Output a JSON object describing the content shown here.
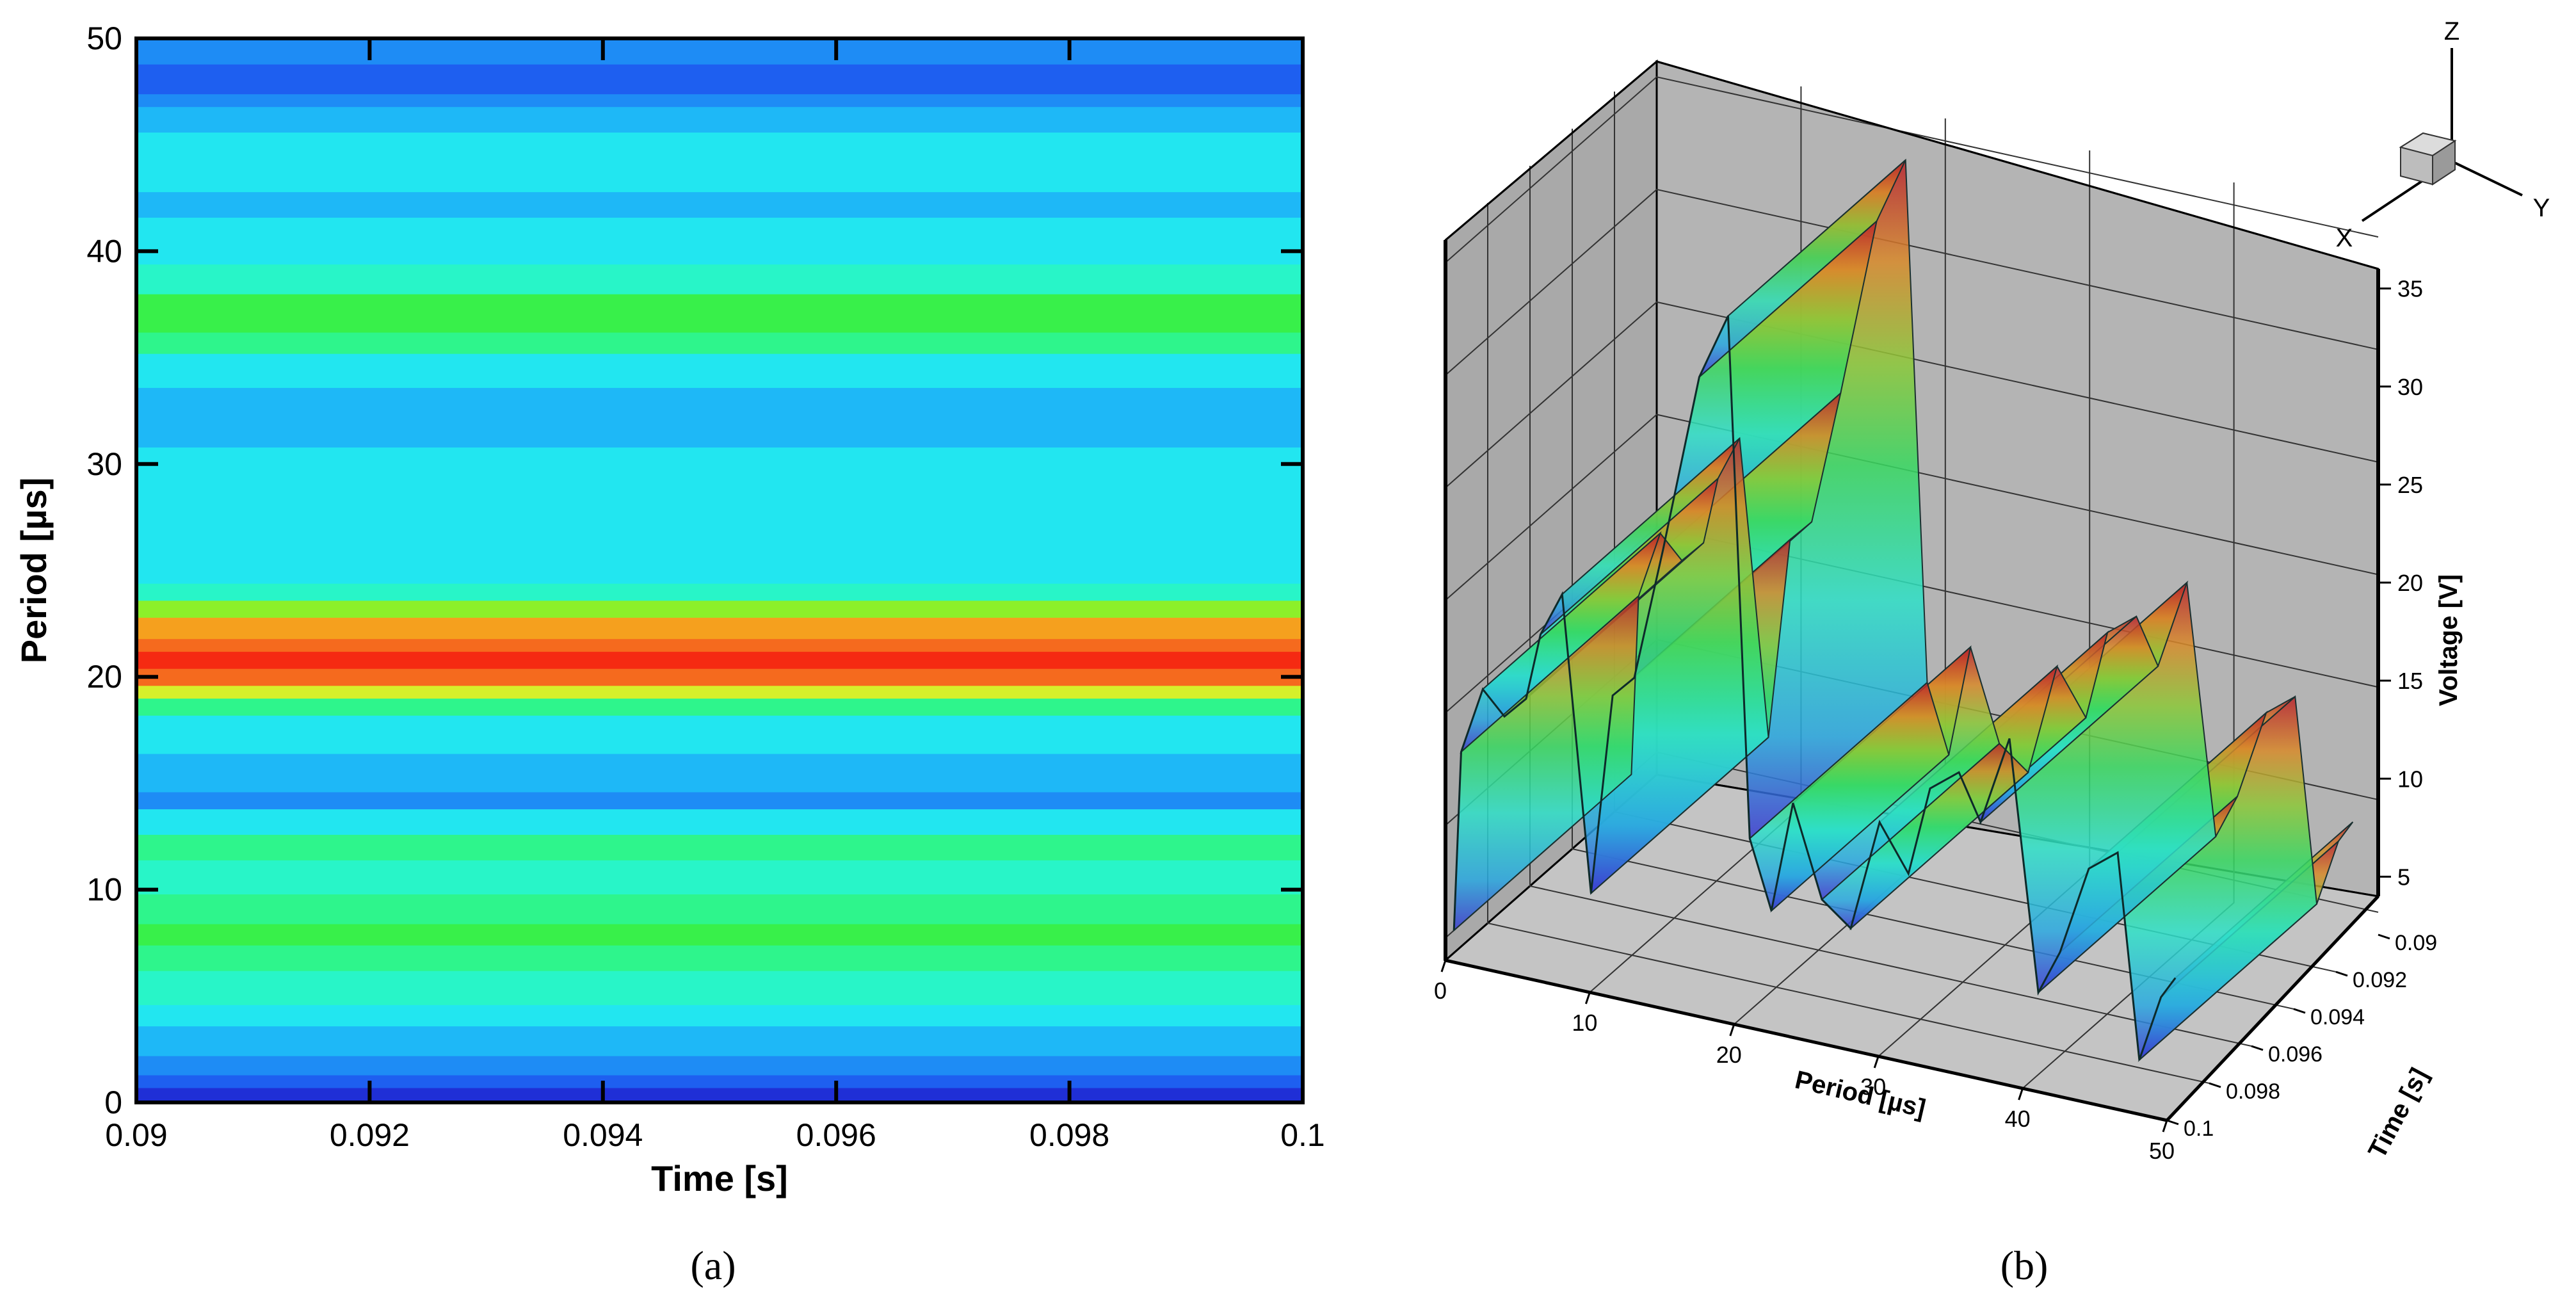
{
  "figure": {
    "panel_a_caption": "(a)",
    "panel_b_caption": "(b)"
  },
  "chart_data": [
    {
      "type": "heatmap",
      "title": "",
      "xlabel": "Time [s]",
      "ylabel": "Period [µs]",
      "xlim": [
        0.09,
        0.1
      ],
      "ylim": [
        0,
        50
      ],
      "x_ticks": [
        "0.09",
        "0.092",
        "0.094",
        "0.096",
        "0.098",
        "0.1"
      ],
      "y_ticks": [
        "0",
        "10",
        "20",
        "30",
        "40",
        "50"
      ],
      "colormap": [
        "#1f2fd6",
        "#1e5ff0",
        "#1e8cf5",
        "#1eb8f7",
        "#22e6f0",
        "#28f5c8",
        "#2ef58c",
        "#38f04a",
        "#8cf02a",
        "#d6f02a",
        "#f5e61e",
        "#f5a01e",
        "#f56a1e",
        "#f52a12"
      ],
      "bands": [
        {
          "from": 0,
          "to": 0.7,
          "level": 0
        },
        {
          "from": 0.7,
          "to": 1.3,
          "level": 1
        },
        {
          "from": 1.3,
          "to": 2.2,
          "level": 2
        },
        {
          "from": 2.2,
          "to": 3.6,
          "level": 3
        },
        {
          "from": 3.6,
          "to": 4.6,
          "level": 4
        },
        {
          "from": 4.6,
          "to": 6.2,
          "level": 5
        },
        {
          "from": 6.2,
          "to": 7.4,
          "level": 6
        },
        {
          "from": 7.4,
          "to": 8.4,
          "level": 7
        },
        {
          "from": 8.4,
          "to": 9.8,
          "level": 6
        },
        {
          "from": 9.8,
          "to": 11.4,
          "level": 5
        },
        {
          "from": 11.4,
          "to": 12.6,
          "level": 6
        },
        {
          "from": 12.6,
          "to": 13.8,
          "level": 4
        },
        {
          "from": 13.8,
          "to": 14.6,
          "level": 2
        },
        {
          "from": 14.6,
          "to": 16.4,
          "level": 3
        },
        {
          "from": 16.4,
          "to": 18.2,
          "level": 4
        },
        {
          "from": 18.2,
          "to": 19.0,
          "level": 6
        },
        {
          "from": 19.0,
          "to": 19.6,
          "level": 9
        },
        {
          "from": 19.6,
          "to": 20.4,
          "level": 12
        },
        {
          "from": 20.4,
          "to": 21.2,
          "level": 13
        },
        {
          "from": 21.2,
          "to": 21.8,
          "level": 12
        },
        {
          "from": 21.8,
          "to": 22.8,
          "level": 11
        },
        {
          "from": 22.8,
          "to": 23.6,
          "level": 8
        },
        {
          "from": 23.6,
          "to": 24.4,
          "level": 5
        },
        {
          "from": 24.4,
          "to": 30.8,
          "level": 4
        },
        {
          "from": 30.8,
          "to": 33.6,
          "level": 3
        },
        {
          "from": 33.6,
          "to": 35.2,
          "level": 4
        },
        {
          "from": 35.2,
          "to": 36.2,
          "level": 6
        },
        {
          "from": 36.2,
          "to": 38.0,
          "level": 7
        },
        {
          "from": 38.0,
          "to": 39.4,
          "level": 5
        },
        {
          "from": 39.4,
          "to": 41.6,
          "level": 4
        },
        {
          "from": 41.6,
          "to": 42.8,
          "level": 3
        },
        {
          "from": 42.8,
          "to": 45.6,
          "level": 4
        },
        {
          "from": 45.6,
          "to": 46.8,
          "level": 3
        },
        {
          "from": 46.8,
          "to": 47.4,
          "level": 2
        },
        {
          "from": 47.4,
          "to": 48.8,
          "level": 1
        },
        {
          "from": 48.8,
          "to": 50,
          "level": 2
        }
      ]
    },
    {
      "type": "surface3d",
      "title": "",
      "xlabel": "Period [µs]",
      "ylabel": "Time [s]",
      "zlabel": "Voltage [V]",
      "xlim": [
        0,
        50
      ],
      "ylim": [
        0.09,
        0.1
      ],
      "zlim": [
        4,
        36
      ],
      "x_ticks": [
        "0",
        "10",
        "20",
        "30",
        "40",
        "50"
      ],
      "y_ticks": [
        "0.09",
        "0.092",
        "0.094",
        "0.096",
        "0.098",
        "0.1"
      ],
      "z_ticks": [
        "5",
        "10",
        "15",
        "20",
        "25",
        "30",
        "35"
      ],
      "axis_triad": {
        "x": "X",
        "y": "Y",
        "z": "Z"
      },
      "profile": {
        "period": [
          0,
          0.5,
          2,
          3.5,
          5,
          6,
          7.5,
          9.5,
          11,
          12.5,
          14.5,
          17,
          19,
          20.5,
          22,
          23.5,
          25.5,
          27.5,
          29.5,
          31.5,
          33,
          35,
          36.5,
          38.5,
          40.5,
          42,
          44,
          46,
          47.5,
          49,
          50
        ],
        "voltage": [
          5,
          13,
          16,
          15,
          16,
          19,
          21,
          8,
          17,
          18,
          24,
          32,
          35,
          12,
          9,
          14,
          10,
          9,
          14,
          12,
          16,
          17,
          15,
          19,
          8,
          10,
          14,
          15,
          6,
          9,
          10
        ]
      }
    }
  ]
}
